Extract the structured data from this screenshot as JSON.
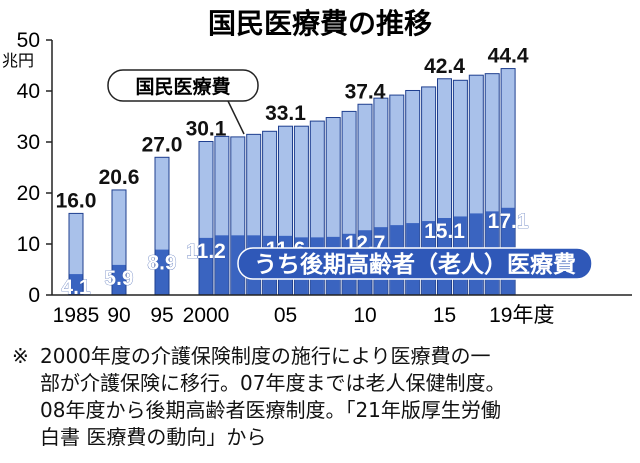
{
  "title": "国民医療費の推移",
  "chart_data": {
    "type": "bar",
    "title": "国民医療費の推移",
    "unit": "兆円",
    "ylim": [
      0,
      50
    ],
    "yticks": [
      "0",
      "10",
      "20",
      "30",
      "40",
      "50"
    ],
    "x_tick_labels": [
      "1985",
      "90",
      "95",
      "2000",
      "05",
      "10",
      "15",
      "19年度"
    ],
    "years": [
      1985,
      1990,
      1995,
      2000,
      2001,
      2002,
      2003,
      2004,
      2005,
      2006,
      2007,
      2008,
      2009,
      2010,
      2011,
      2012,
      2013,
      2014,
      2015,
      2016,
      2017,
      2018,
      2019
    ],
    "series": [
      {
        "name": "国民医療費",
        "color": "#a9c1ea",
        "values": [
          16.0,
          20.6,
          27.0,
          30.1,
          31.1,
          31.0,
          31.5,
          32.1,
          33.1,
          33.1,
          34.1,
          34.8,
          36.0,
          37.4,
          38.6,
          39.2,
          40.1,
          40.8,
          42.4,
          42.1,
          43.1,
          43.4,
          44.4
        ]
      },
      {
        "name": "うち後期高齢者（老人）医療費",
        "color": "#3a64c0",
        "values": [
          4.1,
          5.9,
          8.9,
          11.2,
          11.7,
          11.7,
          11.7,
          11.6,
          11.6,
          11.3,
          11.3,
          11.4,
          12.0,
          12.7,
          13.3,
          13.7,
          14.1,
          14.5,
          15.1,
          15.4,
          16.0,
          16.4,
          17.1
        ]
      }
    ],
    "labeled_totals": [
      {
        "year": 1985,
        "label": "16.0"
      },
      {
        "year": 1990,
        "label": "20.6"
      },
      {
        "year": 1995,
        "label": "27.0"
      },
      {
        "year": 2000,
        "label": "30.1"
      },
      {
        "year": 2005,
        "label": "33.1"
      },
      {
        "year": 2010,
        "label": "37.4"
      },
      {
        "year": 2015,
        "label": "42.4"
      },
      {
        "year": 2019,
        "label": "44.4"
      }
    ],
    "labeled_elder": [
      {
        "year": 1985,
        "label": "4.1"
      },
      {
        "year": 1990,
        "label": "5.9"
      },
      {
        "year": 1995,
        "label": "8.9"
      },
      {
        "year": 2000,
        "label": "11.2"
      },
      {
        "year": 2005,
        "label": "11.6"
      },
      {
        "year": 2010,
        "label": "12.7"
      },
      {
        "year": 2015,
        "label": "15.1"
      },
      {
        "year": 2019,
        "label": "17.1"
      }
    ],
    "annotations": {
      "total_callout": "国民医療費",
      "elder_callout": "うち後期高齢者（老人）医療費"
    }
  },
  "note": {
    "mark": "※",
    "lines": [
      "2000年度の介護保険制度の施行により医療費の一",
      "部が介護保険に移行。07年度までは老人保健制度。",
      "08年度から後期高齢者医療制度。「21年版厚生労働",
      "白書 医療費の動向」から"
    ]
  }
}
